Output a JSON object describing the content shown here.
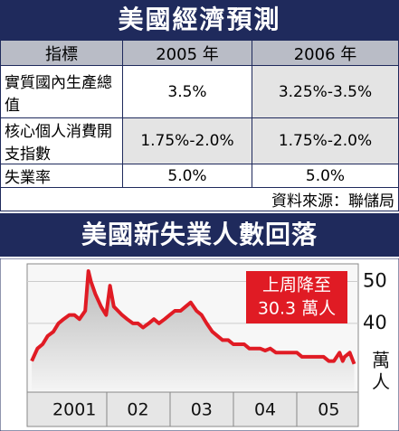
{
  "table": {
    "title": "美國經濟預測",
    "header": [
      "指標",
      "2005 年",
      "2006 年"
    ],
    "rows": [
      [
        "實質國內生產總值",
        "3.5%",
        "3.25%-3.5%"
      ],
      [
        "核心個人消費開支指數",
        "1.75%-2.0%",
        "1.75%-2.0%"
      ],
      [
        "失業率",
        "5.0%",
        "5.0%"
      ]
    ],
    "source": "資料來源：聯儲局"
  },
  "chart_data": {
    "type": "line",
    "title": "美國新失業人數回落",
    "y_label": "萬人",
    "annotation": [
      "上周降至",
      "30.3 萬人"
    ],
    "x": [
      2000.83,
      2000.92,
      2001.0,
      2001.08,
      2001.17,
      2001.25,
      2001.33,
      2001.42,
      2001.5,
      2001.58,
      2001.67,
      2001.72,
      2001.76,
      2001.83,
      2001.92,
      2002.0,
      2002.06,
      2002.12,
      2002.25,
      2002.33,
      2002.42,
      2002.5,
      2002.58,
      2002.67,
      2002.75,
      2002.83,
      2002.92,
      2003.0,
      2003.08,
      2003.17,
      2003.25,
      2003.33,
      2003.42,
      2003.5,
      2003.58,
      2003.67,
      2003.75,
      2003.83,
      2003.92,
      2004.0,
      2004.08,
      2004.17,
      2004.25,
      2004.33,
      2004.42,
      2004.5,
      2004.58,
      2004.67,
      2004.75,
      2004.83,
      2004.92,
      2005.0,
      2005.08,
      2005.17,
      2005.25,
      2005.33,
      2005.42,
      2005.5,
      2005.58,
      2005.67,
      2005.72,
      2005.75,
      2005.83,
      2005.9
    ],
    "series": [
      {
        "name": "新失業人數",
        "color": "#e01b24",
        "values": [
          31,
          34,
          35,
          37,
          38,
          40,
          41,
          42,
          42,
          41,
          43,
          52.5,
          50,
          47,
          44,
          42,
          49,
          44,
          42,
          41,
          40,
          40,
          39,
          40,
          41,
          40,
          41,
          42,
          43,
          43,
          44,
          45,
          43,
          42,
          40,
          38,
          37,
          36,
          36,
          35,
          35,
          35,
          34,
          34,
          34,
          33.5,
          34,
          33,
          33,
          33,
          33,
          33,
          32,
          32,
          32,
          32,
          32,
          31,
          31,
          33,
          31,
          32,
          33,
          30.3
        ]
      }
    ],
    "xlim": [
      2000.8,
      2005.95
    ],
    "xticks": [
      {
        "value": 2001.5,
        "label": "2001"
      },
      {
        "value": 2002.5,
        "label": "02"
      },
      {
        "value": 2003.5,
        "label": "03"
      },
      {
        "value": 2004.5,
        "label": "04"
      },
      {
        "value": 2005.5,
        "label": "05"
      }
    ],
    "ylim": [
      24,
      54
    ],
    "yticks": [
      40,
      50
    ]
  }
}
